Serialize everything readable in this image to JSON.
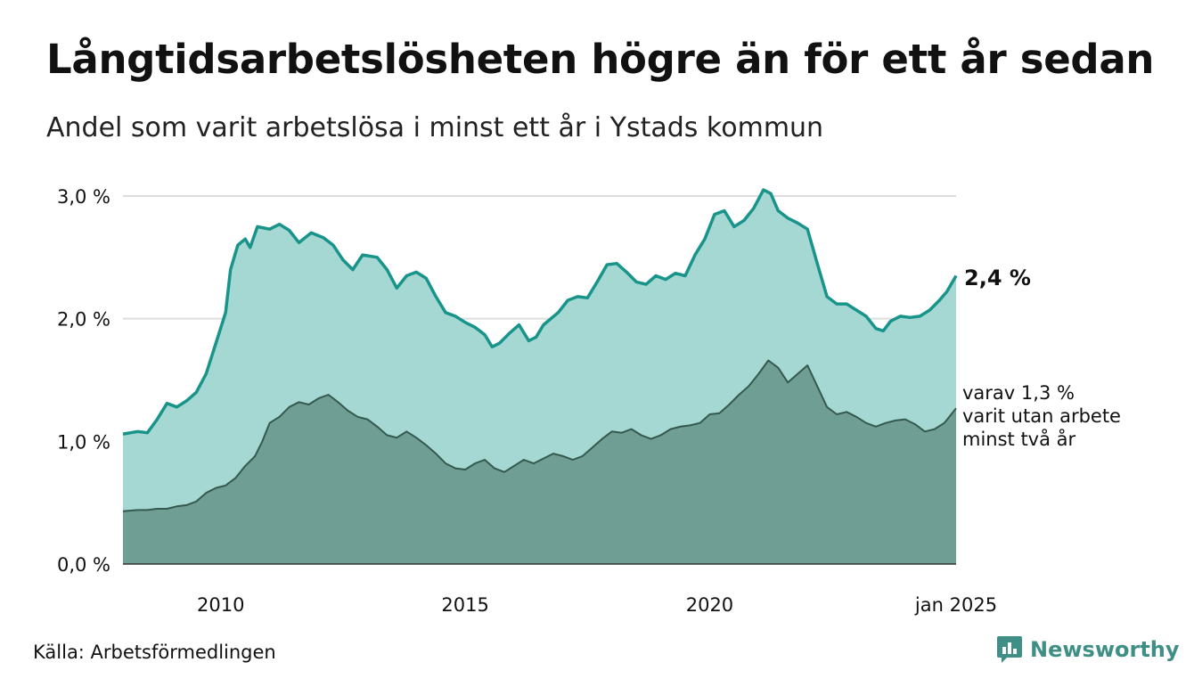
{
  "title": "Långtidsarbetslösheten högre än för ett år sedan",
  "subtitle": "Andel som varit arbetslösa i minst ett år i Ystads kommun",
  "source": "Källa: Arbetsförmedlingen",
  "brand": "Newsworthy",
  "colors": {
    "total_line": "#19948a",
    "total_fill": "#a6d8d3",
    "long_line": "#34594f",
    "long_fill": "#6f9e95",
    "grid": "#dddddd",
    "brand": "#3f8f86"
  },
  "chart_data": {
    "type": "area",
    "x_ticks": [
      {
        "x": 2010,
        "label": "2010"
      },
      {
        "x": 2015,
        "label": "2015"
      },
      {
        "x": 2020,
        "label": "2020"
      },
      {
        "x": 2025.04,
        "label": "jan 2025"
      }
    ],
    "y_ticks": [
      {
        "y": 0,
        "label": "0,0 %"
      },
      {
        "y": 1,
        "label": "1,0 %"
      },
      {
        "y": 2,
        "label": "2,0 %"
      },
      {
        "y": 3,
        "label": "3,0 %"
      }
    ],
    "xlim": [
      2008.0,
      2025.04
    ],
    "ylim": [
      0,
      3.0
    ],
    "grid": true,
    "series": [
      {
        "end_label": "2,4 %",
        "points": [
          [
            2008.0,
            1.06
          ],
          [
            2008.3,
            1.08
          ],
          [
            2008.5,
            1.07
          ],
          [
            2008.7,
            1.18
          ],
          [
            2008.9,
            1.31
          ],
          [
            2009.1,
            1.28
          ],
          [
            2009.3,
            1.33
          ],
          [
            2009.5,
            1.4
          ],
          [
            2009.7,
            1.55
          ],
          [
            2009.9,
            1.8
          ],
          [
            2010.1,
            2.05
          ],
          [
            2010.2,
            2.4
          ],
          [
            2010.35,
            2.6
          ],
          [
            2010.5,
            2.65
          ],
          [
            2010.6,
            2.58
          ],
          [
            2010.75,
            2.75
          ],
          [
            2011.0,
            2.73
          ],
          [
            2011.2,
            2.77
          ],
          [
            2011.4,
            2.72
          ],
          [
            2011.6,
            2.62
          ],
          [
            2011.85,
            2.7
          ],
          [
            2012.1,
            2.66
          ],
          [
            2012.3,
            2.6
          ],
          [
            2012.5,
            2.48
          ],
          [
            2012.7,
            2.4
          ],
          [
            2012.9,
            2.52
          ],
          [
            2013.2,
            2.5
          ],
          [
            2013.4,
            2.4
          ],
          [
            2013.6,
            2.25
          ],
          [
            2013.8,
            2.35
          ],
          [
            2014.0,
            2.38
          ],
          [
            2014.2,
            2.33
          ],
          [
            2014.4,
            2.18
          ],
          [
            2014.6,
            2.05
          ],
          [
            2014.8,
            2.02
          ],
          [
            2015.0,
            1.97
          ],
          [
            2015.2,
            1.93
          ],
          [
            2015.4,
            1.87
          ],
          [
            2015.55,
            1.77
          ],
          [
            2015.7,
            1.8
          ],
          [
            2015.9,
            1.88
          ],
          [
            2016.1,
            1.95
          ],
          [
            2016.3,
            1.82
          ],
          [
            2016.45,
            1.85
          ],
          [
            2016.6,
            1.95
          ],
          [
            2016.9,
            2.05
          ],
          [
            2017.1,
            2.15
          ],
          [
            2017.3,
            2.18
          ],
          [
            2017.5,
            2.17
          ],
          [
            2017.7,
            2.3
          ],
          [
            2017.9,
            2.44
          ],
          [
            2018.1,
            2.45
          ],
          [
            2018.3,
            2.38
          ],
          [
            2018.5,
            2.3
          ],
          [
            2018.7,
            2.28
          ],
          [
            2018.9,
            2.35
          ],
          [
            2019.1,
            2.32
          ],
          [
            2019.3,
            2.37
          ],
          [
            2019.5,
            2.35
          ],
          [
            2019.7,
            2.52
          ],
          [
            2019.9,
            2.65
          ],
          [
            2020.1,
            2.85
          ],
          [
            2020.3,
            2.88
          ],
          [
            2020.5,
            2.75
          ],
          [
            2020.7,
            2.8
          ],
          [
            2020.9,
            2.9
          ],
          [
            2021.1,
            3.05
          ],
          [
            2021.25,
            3.02
          ],
          [
            2021.4,
            2.88
          ],
          [
            2021.6,
            2.82
          ],
          [
            2021.8,
            2.78
          ],
          [
            2022.0,
            2.73
          ],
          [
            2022.2,
            2.45
          ],
          [
            2022.4,
            2.18
          ],
          [
            2022.6,
            2.12
          ],
          [
            2022.8,
            2.12
          ],
          [
            2023.0,
            2.07
          ],
          [
            2023.2,
            2.02
          ],
          [
            2023.4,
            1.92
          ],
          [
            2023.55,
            1.9
          ],
          [
            2023.7,
            1.98
          ],
          [
            2023.9,
            2.02
          ],
          [
            2024.1,
            2.01
          ],
          [
            2024.3,
            2.02
          ],
          [
            2024.5,
            2.07
          ],
          [
            2024.7,
            2.15
          ],
          [
            2024.85,
            2.22
          ],
          [
            2025.04,
            2.35
          ]
        ]
      },
      {
        "annotation": [
          "varav 1,3 %",
          "varit utan arbete",
          "minst två år"
        ],
        "points": [
          [
            2008.0,
            0.43
          ],
          [
            2008.3,
            0.44
          ],
          [
            2008.5,
            0.44
          ],
          [
            2008.7,
            0.45
          ],
          [
            2008.9,
            0.45
          ],
          [
            2009.1,
            0.47
          ],
          [
            2009.3,
            0.48
          ],
          [
            2009.5,
            0.51
          ],
          [
            2009.7,
            0.58
          ],
          [
            2009.9,
            0.62
          ],
          [
            2010.1,
            0.64
          ],
          [
            2010.3,
            0.7
          ],
          [
            2010.5,
            0.8
          ],
          [
            2010.7,
            0.88
          ],
          [
            2010.85,
            1.0
          ],
          [
            2011.0,
            1.15
          ],
          [
            2011.2,
            1.2
          ],
          [
            2011.4,
            1.28
          ],
          [
            2011.6,
            1.32
          ],
          [
            2011.8,
            1.3
          ],
          [
            2012.0,
            1.35
          ],
          [
            2012.2,
            1.38
          ],
          [
            2012.4,
            1.32
          ],
          [
            2012.6,
            1.25
          ],
          [
            2012.8,
            1.2
          ],
          [
            2013.0,
            1.18
          ],
          [
            2013.2,
            1.12
          ],
          [
            2013.4,
            1.05
          ],
          [
            2013.6,
            1.03
          ],
          [
            2013.8,
            1.08
          ],
          [
            2014.0,
            1.03
          ],
          [
            2014.2,
            0.97
          ],
          [
            2014.4,
            0.9
          ],
          [
            2014.6,
            0.82
          ],
          [
            2014.8,
            0.78
          ],
          [
            2015.0,
            0.77
          ],
          [
            2015.2,
            0.82
          ],
          [
            2015.4,
            0.85
          ],
          [
            2015.6,
            0.78
          ],
          [
            2015.8,
            0.75
          ],
          [
            2016.0,
            0.8
          ],
          [
            2016.2,
            0.85
          ],
          [
            2016.4,
            0.82
          ],
          [
            2016.6,
            0.86
          ],
          [
            2016.8,
            0.9
          ],
          [
            2017.0,
            0.88
          ],
          [
            2017.2,
            0.85
          ],
          [
            2017.4,
            0.88
          ],
          [
            2017.6,
            0.95
          ],
          [
            2017.8,
            1.02
          ],
          [
            2018.0,
            1.08
          ],
          [
            2018.2,
            1.07
          ],
          [
            2018.4,
            1.1
          ],
          [
            2018.6,
            1.05
          ],
          [
            2018.8,
            1.02
          ],
          [
            2019.0,
            1.05
          ],
          [
            2019.2,
            1.1
          ],
          [
            2019.4,
            1.12
          ],
          [
            2019.6,
            1.13
          ],
          [
            2019.8,
            1.15
          ],
          [
            2020.0,
            1.22
          ],
          [
            2020.2,
            1.23
          ],
          [
            2020.4,
            1.3
          ],
          [
            2020.6,
            1.38
          ],
          [
            2020.8,
            1.45
          ],
          [
            2021.0,
            1.55
          ],
          [
            2021.2,
            1.66
          ],
          [
            2021.4,
            1.6
          ],
          [
            2021.6,
            1.48
          ],
          [
            2021.8,
            1.55
          ],
          [
            2022.0,
            1.62
          ],
          [
            2022.2,
            1.45
          ],
          [
            2022.4,
            1.28
          ],
          [
            2022.6,
            1.22
          ],
          [
            2022.8,
            1.24
          ],
          [
            2023.0,
            1.2
          ],
          [
            2023.2,
            1.15
          ],
          [
            2023.4,
            1.12
          ],
          [
            2023.6,
            1.15
          ],
          [
            2023.8,
            1.17
          ],
          [
            2024.0,
            1.18
          ],
          [
            2024.2,
            1.14
          ],
          [
            2024.4,
            1.08
          ],
          [
            2024.6,
            1.1
          ],
          [
            2024.8,
            1.15
          ],
          [
            2025.04,
            1.27
          ]
        ]
      }
    ]
  }
}
